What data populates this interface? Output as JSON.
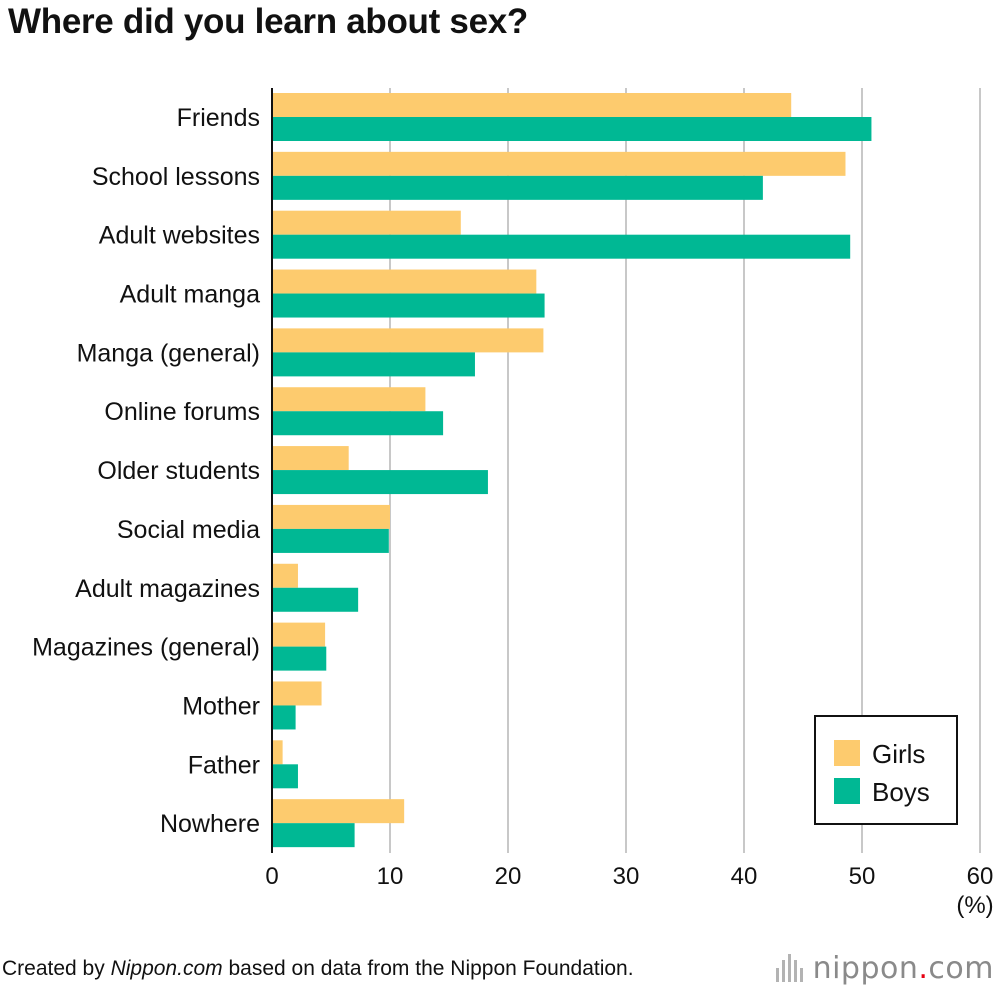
{
  "title": "Where did you learn about sex?",
  "footer": {
    "prefix": "Created by ",
    "source_italic": "Nippon.com",
    "suffix": " based on data from the Nippon Foundation."
  },
  "brand": {
    "name": "nippon",
    "dot": ".",
    "tld": "com"
  },
  "colors": {
    "girls": "#FDCB6E",
    "boys": "#00B894",
    "grid": "#c8c8c8",
    "axis": "#111111"
  },
  "chart_data": {
    "type": "bar",
    "orientation": "horizontal",
    "title": "Where did you learn about sex?",
    "categories": [
      "Friends",
      "School lessons",
      "Adult websites",
      "Adult manga",
      "Manga (general)",
      "Online forums",
      "Older students",
      "Social media",
      "Adult magazines",
      "Magazines (general)",
      "Mother",
      "Father",
      "Nowhere"
    ],
    "series": [
      {
        "name": "Girls",
        "values": [
          44.0,
          48.6,
          16.0,
          22.4,
          23.0,
          13.0,
          6.5,
          10.0,
          2.2,
          4.5,
          4.2,
          0.9,
          11.2
        ]
      },
      {
        "name": "Boys",
        "values": [
          50.8,
          41.6,
          49.0,
          23.1,
          17.2,
          14.5,
          18.3,
          9.9,
          7.3,
          4.6,
          2.0,
          2.2,
          7.0
        ]
      }
    ],
    "xlim": [
      0,
      60
    ],
    "xticks": [
      0,
      10,
      20,
      30,
      40,
      50,
      60
    ],
    "x_unit": "(%)",
    "grid": true,
    "legend_position": "bottom-right"
  }
}
